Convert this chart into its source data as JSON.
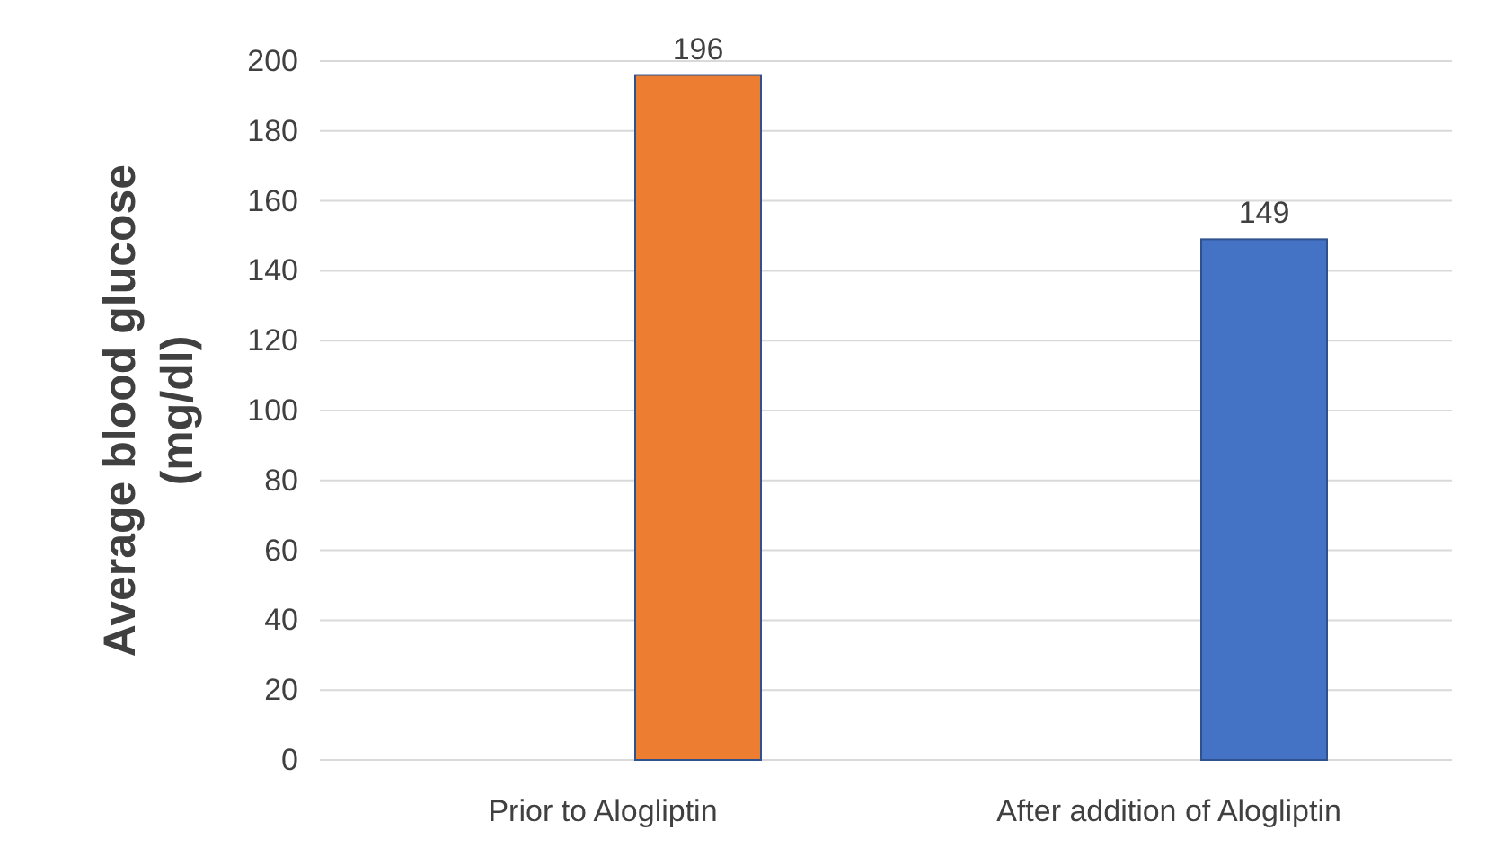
{
  "chart_data": {
    "type": "bar",
    "ylabel": "Average blood glucose\n(mg/dl)",
    "categories": [
      "Prior to Alogliptin",
      "After addition of Alogliptin"
    ],
    "values": [
      196,
      149
    ],
    "colors": [
      "#ed7d31",
      "#4472c4"
    ],
    "ylim": [
      0,
      200
    ],
    "yticks": [
      0,
      20,
      40,
      60,
      80,
      100,
      120,
      140,
      160,
      180,
      200
    ],
    "grid": "y",
    "data_labels": true
  }
}
